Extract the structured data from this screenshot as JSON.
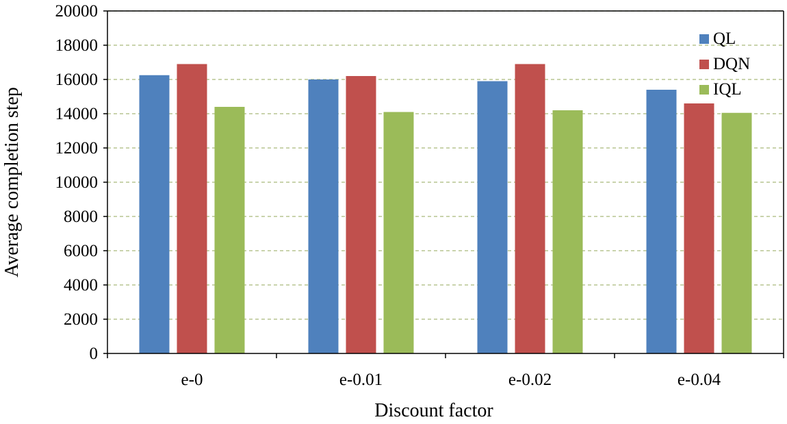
{
  "chart_data": {
    "type": "bar",
    "title": "",
    "xlabel": "Discount factor",
    "ylabel": "Average completion step",
    "categories": [
      "e-0",
      "e-0.01",
      "e-0.02",
      "e-0.04"
    ],
    "series": [
      {
        "name": "QL",
        "color": "#4f81bd",
        "values": [
          16250,
          16000,
          15900,
          15400
        ]
      },
      {
        "name": "DQN",
        "color": "#c0504d",
        "values": [
          16900,
          16200,
          16900,
          14600
        ]
      },
      {
        "name": "IQL",
        "color": "#9bbb59",
        "values": [
          14400,
          14100,
          14200,
          14050
        ]
      }
    ],
    "ylim": [
      0,
      20000
    ],
    "yticks": [
      0,
      2000,
      4000,
      6000,
      8000,
      10000,
      12000,
      14000,
      16000,
      18000,
      20000
    ],
    "grid": true,
    "gridline_color": "#a9b97a",
    "legend_position": "top-right"
  }
}
